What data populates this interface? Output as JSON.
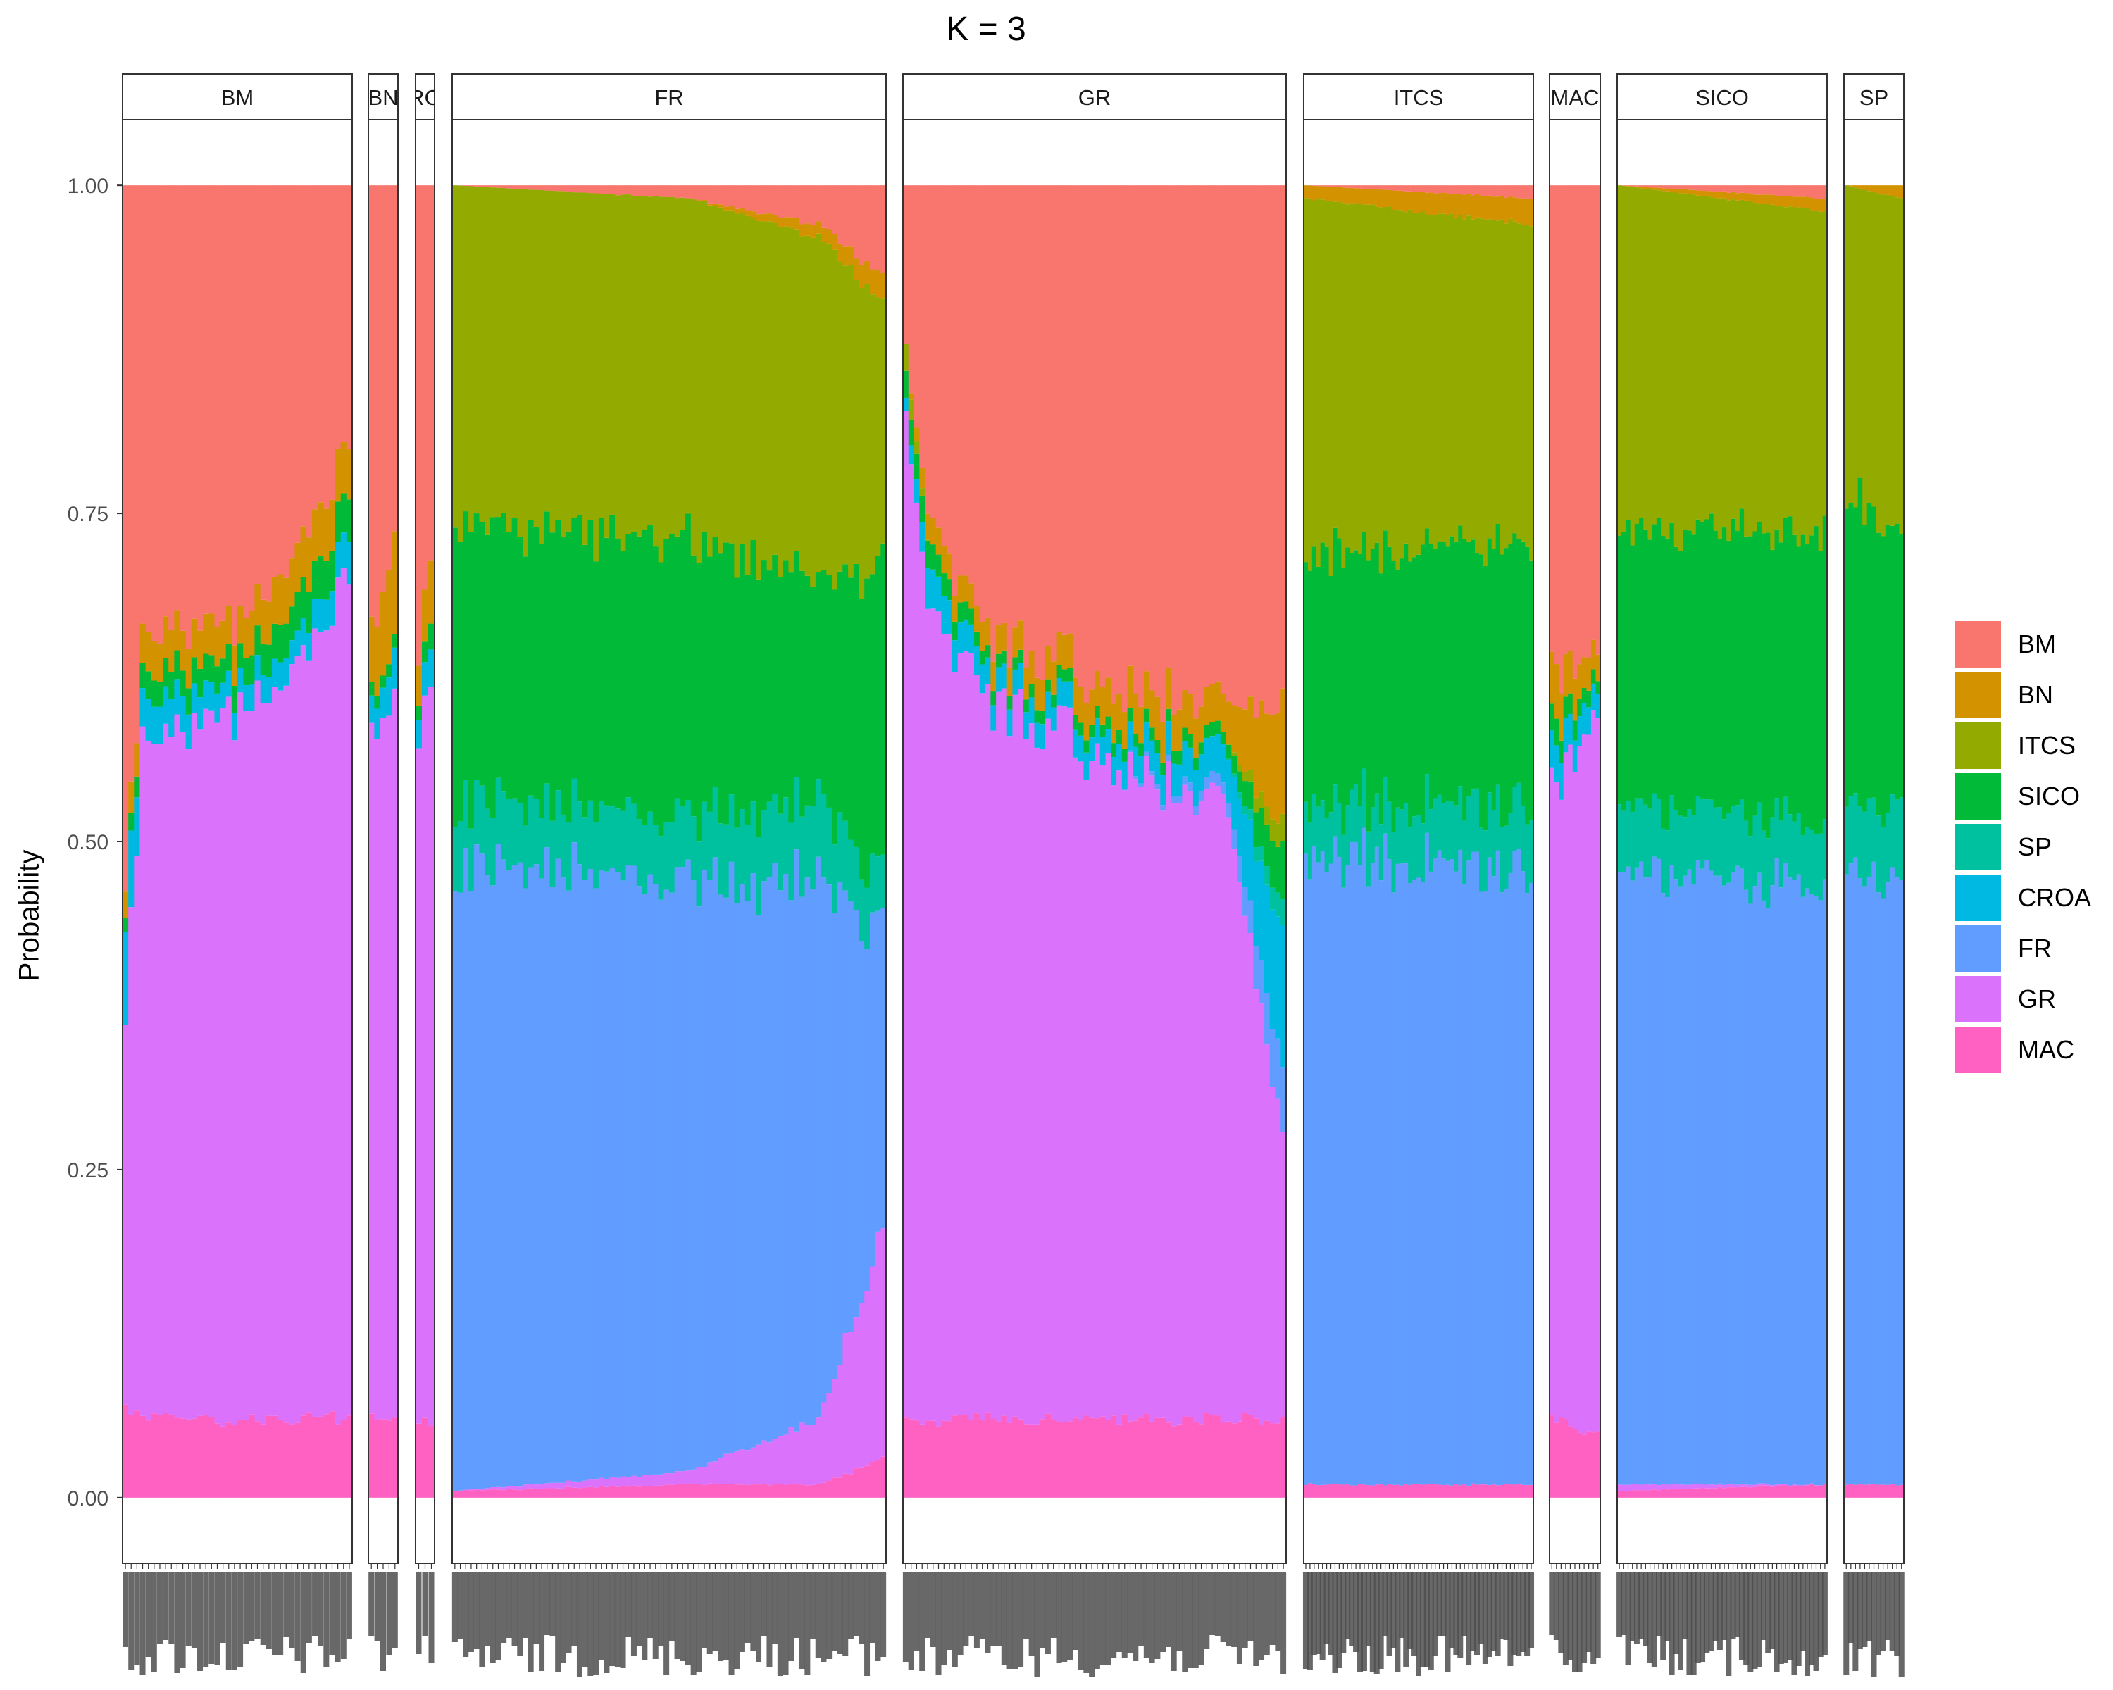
{
  "chart_data": {
    "type": "bar",
    "title": "K = 3",
    "xlabel": "",
    "ylabel": "Probability",
    "ylim": [
      -0.05,
      1.05
    ],
    "y_ticks": [
      "0.00",
      "0.25",
      "0.50",
      "0.75",
      "1.00"
    ],
    "y_tick_values": [
      0,
      0.25,
      0.5,
      0.75,
      1.0
    ],
    "grid": false,
    "legend_position": "right",
    "legend": [
      {
        "name": "BM",
        "color": "#F8766D"
      },
      {
        "name": "BN",
        "color": "#D39200"
      },
      {
        "name": "ITCS",
        "color": "#93AA00"
      },
      {
        "name": "SICO",
        "color": "#00BA38"
      },
      {
        "name": "SP",
        "color": "#00C19F"
      },
      {
        "name": "CROA",
        "color": "#00B9E3"
      },
      {
        "name": "FR",
        "color": "#619CFF"
      },
      {
        "name": "GR",
        "color": "#DB72FB"
      },
      {
        "name": "MAC",
        "color": "#FF61C3"
      }
    ],
    "stack_order_bottom_to_top": [
      "MAC",
      "GR",
      "FR",
      "CROA",
      "SP",
      "SICO",
      "ITCS",
      "BN",
      "BM"
    ],
    "panels": [
      {
        "label": "BM",
        "bars": 40,
        "profiles": [
          {
            "at": 0.0,
            "MAC": 0.07,
            "GR": 0.3,
            "FR": 0.0,
            "CROA": 0.07,
            "SP": 0.0,
            "SICO": 0.01,
            "ITCS": 0.0,
            "BN": 0.02,
            "BM": 0.53
          },
          {
            "at": 0.08,
            "MAC": 0.06,
            "GR": 0.52,
            "FR": 0.0,
            "CROA": 0.03,
            "SP": 0.0,
            "SICO": 0.02,
            "ITCS": 0.0,
            "BN": 0.03,
            "BM": 0.34
          },
          {
            "at": 0.5,
            "MAC": 0.06,
            "GR": 0.54,
            "FR": 0.0,
            "CROA": 0.02,
            "SP": 0.0,
            "SICO": 0.02,
            "ITCS": 0.0,
            "BN": 0.03,
            "BM": 0.33
          },
          {
            "at": 0.8,
            "MAC": 0.06,
            "GR": 0.58,
            "FR": 0.0,
            "CROA": 0.02,
            "SP": 0.0,
            "SICO": 0.03,
            "ITCS": 0.0,
            "BN": 0.04,
            "BM": 0.27
          },
          {
            "at": 1.0,
            "MAC": 0.06,
            "GR": 0.65,
            "FR": 0.0,
            "CROA": 0.03,
            "SP": 0.0,
            "SICO": 0.03,
            "ITCS": 0.0,
            "BN": 0.04,
            "BM": 0.19
          }
        ]
      },
      {
        "label": "BN",
        "bars": 5,
        "profiles": [
          {
            "at": 0.0,
            "MAC": 0.06,
            "GR": 0.52,
            "FR": 0.0,
            "CROA": 0.02,
            "SP": 0.0,
            "SICO": 0.01,
            "ITCS": 0.0,
            "BN": 0.05,
            "BM": 0.34
          },
          {
            "at": 1.0,
            "MAC": 0.06,
            "GR": 0.55,
            "FR": 0.0,
            "CROA": 0.03,
            "SP": 0.0,
            "SICO": 0.01,
            "ITCS": 0.0,
            "BN": 0.08,
            "BM": 0.27
          }
        ]
      },
      {
        "label": "CROA",
        "bars": 3,
        "profiles": [
          {
            "at": 0.0,
            "MAC": 0.06,
            "GR": 0.54,
            "FR": 0.0,
            "CROA": 0.02,
            "SP": 0.0,
            "SICO": 0.01,
            "ITCS": 0.0,
            "BN": 0.03,
            "BM": 0.34
          },
          {
            "at": 1.0,
            "MAC": 0.06,
            "GR": 0.56,
            "FR": 0.0,
            "CROA": 0.03,
            "SP": 0.0,
            "SICO": 0.02,
            "ITCS": 0.0,
            "BN": 0.05,
            "BM": 0.28
          }
        ]
      },
      {
        "label": "FR",
        "bars": 80,
        "profiles": [
          {
            "at": 0.0,
            "MAC": 0.005,
            "GR": 0.0,
            "FR": 0.475,
            "CROA": 0.0,
            "SP": 0.05,
            "SICO": 0.21,
            "ITCS": 0.26,
            "BN": 0.0,
            "BM": 0.0
          },
          {
            "at": 0.55,
            "MAC": 0.01,
            "GR": 0.01,
            "FR": 0.45,
            "CROA": 0.0,
            "SP": 0.05,
            "SICO": 0.21,
            "ITCS": 0.26,
            "BN": 0.0,
            "BM": 0.01
          },
          {
            "at": 0.85,
            "MAC": 0.01,
            "GR": 0.05,
            "FR": 0.41,
            "CROA": 0.0,
            "SP": 0.06,
            "SICO": 0.17,
            "ITCS": 0.26,
            "BN": 0.01,
            "BM": 0.03
          },
          {
            "at": 1.0,
            "MAC": 0.03,
            "GR": 0.17,
            "FR": 0.23,
            "CROA": 0.0,
            "SP": 0.04,
            "SICO": 0.24,
            "ITCS": 0.2,
            "BN": 0.02,
            "BM": 0.07
          }
        ]
      },
      {
        "label": "GR",
        "bars": 70,
        "profiles": [
          {
            "at": 0.0,
            "MAC": 0.06,
            "GR": 0.76,
            "FR": 0.0,
            "CROA": 0.01,
            "SP": 0.0,
            "SICO": 0.02,
            "ITCS": 0.02,
            "BN": 0.0,
            "BM": 0.13
          },
          {
            "at": 0.06,
            "MAC": 0.06,
            "GR": 0.62,
            "FR": 0.0,
            "CROA": 0.03,
            "SP": 0.0,
            "SICO": 0.02,
            "ITCS": 0.0,
            "BN": 0.02,
            "BM": 0.25
          },
          {
            "at": 0.2,
            "MAC": 0.06,
            "GR": 0.55,
            "FR": 0.0,
            "CROA": 0.02,
            "SP": 0.0,
            "SICO": 0.01,
            "ITCS": 0.0,
            "BN": 0.02,
            "BM": 0.34
          },
          {
            "at": 0.55,
            "MAC": 0.06,
            "GR": 0.5,
            "FR": 0.0,
            "CROA": 0.02,
            "SP": 0.0,
            "SICO": 0.01,
            "ITCS": 0.0,
            "BN": 0.03,
            "BM": 0.38
          },
          {
            "at": 0.85,
            "MAC": 0.06,
            "GR": 0.46,
            "FR": 0.01,
            "CROA": 0.03,
            "SP": 0.0,
            "SICO": 0.01,
            "ITCS": 0.0,
            "BN": 0.03,
            "BM": 0.4
          },
          {
            "at": 1.0,
            "MAC": 0.06,
            "GR": 0.22,
            "FR": 0.05,
            "CROA": 0.1,
            "SP": 0.02,
            "SICO": 0.04,
            "ITCS": 0.02,
            "BN": 0.09,
            "BM": 0.4
          }
        ]
      },
      {
        "label": "ITCS",
        "bars": 55,
        "profiles": [
          {
            "at": 0.0,
            "MAC": 0.01,
            "GR": 0.0,
            "FR": 0.48,
            "CROA": 0.0,
            "SP": 0.04,
            "SICO": 0.19,
            "ITCS": 0.27,
            "BN": 0.01,
            "BM": 0.0
          },
          {
            "at": 1.0,
            "MAC": 0.01,
            "GR": 0.0,
            "FR": 0.47,
            "CROA": 0.0,
            "SP": 0.05,
            "SICO": 0.2,
            "ITCS": 0.24,
            "BN": 0.02,
            "BM": 0.01
          }
        ]
      },
      {
        "label": "MAC",
        "bars": 11,
        "profiles": [
          {
            "at": 0.0,
            "MAC": 0.06,
            "GR": 0.48,
            "FR": 0.0,
            "CROA": 0.03,
            "SP": 0.0,
            "SICO": 0.02,
            "ITCS": 0.0,
            "BN": 0.04,
            "BM": 0.37
          },
          {
            "at": 1.0,
            "MAC": 0.05,
            "GR": 0.55,
            "FR": 0.0,
            "CROA": 0.02,
            "SP": 0.0,
            "SICO": 0.01,
            "ITCS": 0.0,
            "BN": 0.02,
            "BM": 0.35
          }
        ]
      },
      {
        "label": "SICO",
        "bars": 48,
        "profiles": [
          {
            "at": 0.0,
            "MAC": 0.005,
            "GR": 0.005,
            "FR": 0.47,
            "CROA": 0.0,
            "SP": 0.05,
            "SICO": 0.21,
            "ITCS": 0.26,
            "BN": 0.0,
            "BM": 0.0
          },
          {
            "at": 1.0,
            "MAC": 0.01,
            "GR": 0.0,
            "FR": 0.45,
            "CROA": 0.0,
            "SP": 0.05,
            "SICO": 0.22,
            "ITCS": 0.25,
            "BN": 0.01,
            "BM": 0.01
          }
        ]
      },
      {
        "label": "SP",
        "bars": 13,
        "profiles": [
          {
            "at": 0.0,
            "MAC": 0.01,
            "GR": 0.0,
            "FR": 0.47,
            "CROA": 0.0,
            "SP": 0.05,
            "SICO": 0.24,
            "ITCS": 0.23,
            "BN": 0.0,
            "BM": 0.0
          },
          {
            "at": 1.0,
            "MAC": 0.01,
            "GR": 0.0,
            "FR": 0.46,
            "CROA": 0.0,
            "SP": 0.06,
            "SICO": 0.21,
            "ITCS": 0.25,
            "BN": 0.01,
            "BM": 0.0
          }
        ]
      }
    ],
    "panel_strip_labels": [
      "BM",
      "BN",
      "RO",
      "FR",
      "GR",
      "ITCS",
      "MAC",
      "SICO",
      "SP"
    ],
    "x_tick_labels_illegible": true
  }
}
